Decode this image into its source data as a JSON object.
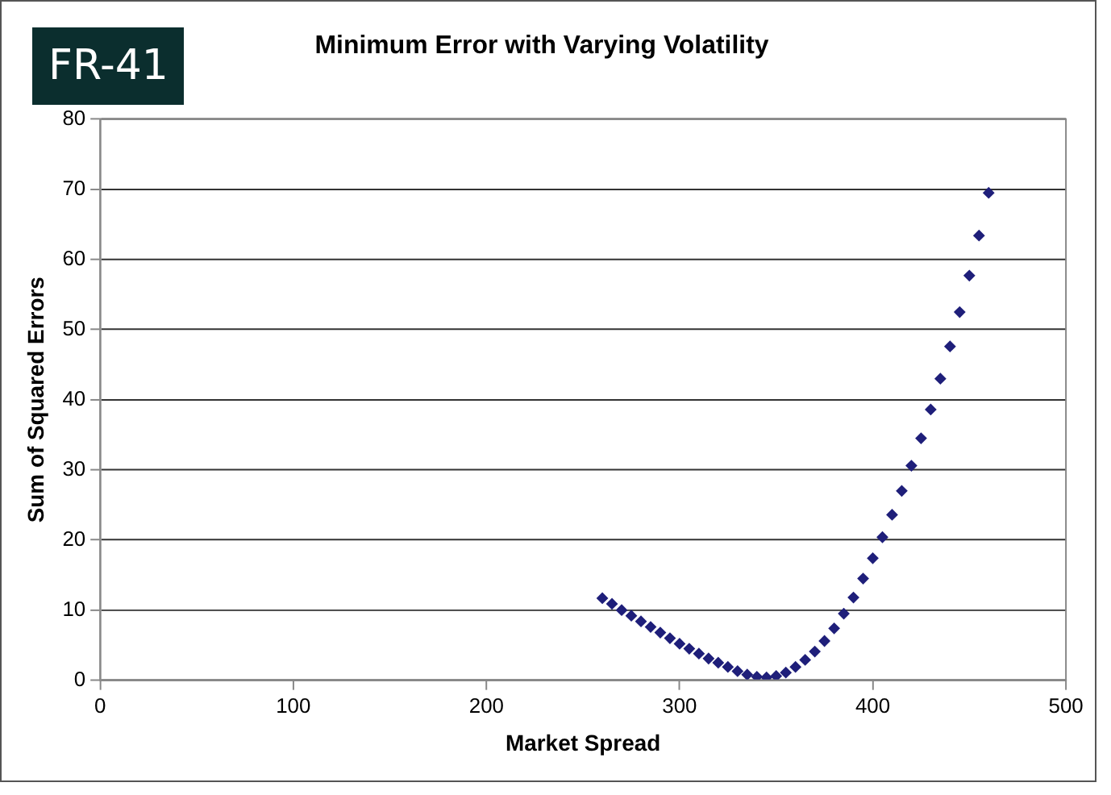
{
  "chart_data": {
    "type": "scatter",
    "title": "Minimum Error with Varying Volatility",
    "xlabel": "Market Spread",
    "ylabel": "Sum of Squared Errors",
    "annotations": [
      "FR-41"
    ],
    "x": [
      260,
      265,
      270,
      275,
      280,
      285,
      290,
      295,
      300,
      305,
      310,
      315,
      320,
      325,
      330,
      335,
      340,
      345,
      350,
      355,
      360,
      365,
      370,
      375,
      380,
      385,
      390,
      395,
      400,
      405,
      410,
      415,
      420,
      425,
      430,
      435,
      440,
      445,
      450,
      455,
      460
    ],
    "series": [
      {
        "color": "#1f1f7a",
        "values": [
          11.7,
          10.9,
          10.0,
          9.2,
          8.4,
          7.6,
          6.8,
          6.0,
          5.2,
          4.5,
          3.8,
          3.1,
          2.5,
          1.9,
          1.3,
          0.8,
          0.5,
          0.4,
          0.6,
          1.1,
          1.9,
          2.9,
          4.1,
          5.6,
          7.4,
          9.5,
          11.8,
          14.5,
          17.4,
          20.4,
          23.6,
          27.0,
          30.6,
          34.5,
          38.6,
          43.0,
          47.6,
          52.5,
          57.7,
          63.4,
          69.5
        ]
      }
    ],
    "xlim": [
      0,
      500
    ],
    "xticks": [
      0,
      100,
      200,
      300,
      400,
      500
    ],
    "ylim": [
      0,
      80
    ],
    "yticks": [
      0,
      10,
      20,
      30,
      40,
      50,
      60,
      70,
      80
    ],
    "grid": "y",
    "legend": false,
    "marker": "diamond"
  }
}
